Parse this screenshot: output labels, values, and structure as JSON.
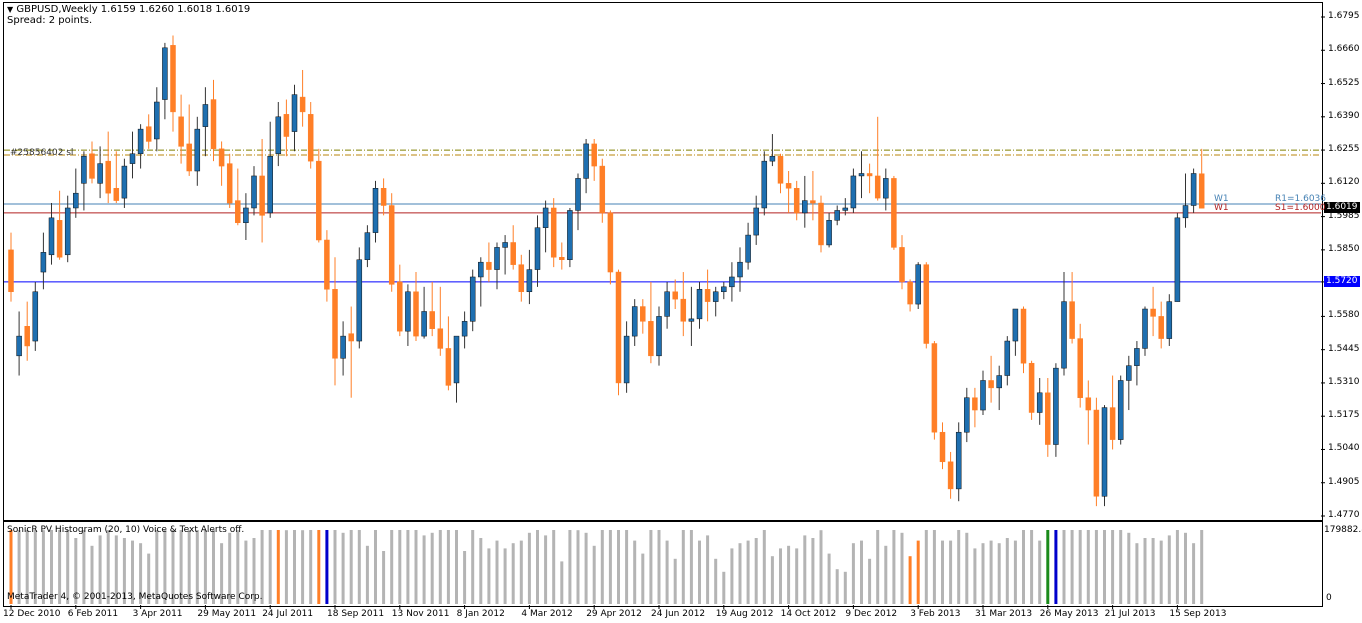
{
  "header": {
    "symbol_line": "GBPUSD,Weekly  1.6159 1.6260 1.6018 1.6019",
    "spread": "Spread: 2 points.",
    "object_label": "#25856402 sl"
  },
  "price_axis": {
    "ticks": [
      "1.6795",
      "1.6660",
      "1.6525",
      "1.6390",
      "1.6255",
      "1.6120",
      "1.5985",
      "1.5850",
      "1.5720",
      "1.5580",
      "1.5445",
      "1.5310",
      "1.5175",
      "1.5040",
      "1.4905",
      "1.4770"
    ],
    "current_price": "1.6019",
    "blue_line_price": "1.5720"
  },
  "pivots": {
    "w1_left_top": "W1",
    "w1_left_bottom": "W1",
    "r1": "R1=1.6036",
    "s1": "S1=1.6000"
  },
  "indicator": {
    "title": "SonicR PV Histogram  (20, 10)    Voice & Text Alerts off.",
    "axis_top": "179882.8",
    "axis_zero": "0",
    "copyright": "MetaTrader 4, © 2001-2013, MetaQuotes Software Corp."
  },
  "time_axis": [
    "12 Dec 2010",
    "6 Feb 2011",
    "3 Apr 2011",
    "29 May 2011",
    "24 Jul 2011",
    "18 Sep 2011",
    "13 Nov 2011",
    "8 Jan 2012",
    "4 Mar 2012",
    "29 Apr 2012",
    "24 Jun 2012",
    "19 Aug 2012",
    "14 Oct 2012",
    "9 Dec 2012",
    "3 Feb 2013",
    "31 Mar 2013",
    "26 May 2013",
    "21 Jul 2013",
    "15 Sep 2013"
  ],
  "colors": {
    "bull": "#1e6fb0",
    "bear": "#ff7f27",
    "hline_blue": "#0000ff",
    "pivot_r": "#4682b4",
    "pivot_s": "#b22222",
    "vol_gray": "#b4b4b4"
  },
  "chart_data": {
    "type": "candlestick",
    "title": "GBPUSD,Weekly",
    "ylim": [
      1.477,
      1.6795
    ],
    "candles": [
      [
        1.585,
        1.592,
        1.564,
        1.568
      ],
      [
        1.542,
        1.56,
        1.534,
        1.55
      ],
      [
        1.554,
        1.564,
        1.54,
        1.546
      ],
      [
        1.548,
        1.572,
        1.544,
        1.568
      ],
      [
        1.576,
        1.592,
        1.569,
        1.584
      ],
      [
        1.583,
        1.604,
        1.579,
        1.598
      ],
      [
        1.597,
        1.609,
        1.581,
        1.582
      ],
      [
        1.583,
        1.607,
        1.58,
        1.602
      ],
      [
        1.602,
        1.618,
        1.598,
        1.608
      ],
      [
        1.612,
        1.625,
        1.601,
        1.623
      ],
      [
        1.624,
        1.629,
        1.612,
        1.614
      ],
      [
        1.612,
        1.627,
        1.606,
        1.62
      ],
      [
        1.621,
        1.633,
        1.604,
        1.608
      ],
      [
        1.61,
        1.625,
        1.604,
        1.605
      ],
      [
        1.606,
        1.622,
        1.602,
        1.619
      ],
      [
        1.62,
        1.633,
        1.614,
        1.624
      ],
      [
        1.624,
        1.636,
        1.618,
        1.634
      ],
      [
        1.635,
        1.64,
        1.626,
        1.629
      ],
      [
        1.63,
        1.651,
        1.625,
        1.645
      ],
      [
        1.646,
        1.669,
        1.638,
        1.667
      ],
      [
        1.668,
        1.672,
        1.633,
        1.641
      ],
      [
        1.639,
        1.648,
        1.62,
        1.627
      ],
      [
        1.628,
        1.644,
        1.615,
        1.617
      ],
      [
        1.617,
        1.639,
        1.611,
        1.634
      ],
      [
        1.635,
        1.651,
        1.623,
        1.644
      ],
      [
        1.646,
        1.654,
        1.621,
        1.626
      ],
      [
        1.626,
        1.629,
        1.611,
        1.619
      ],
      [
        1.62,
        1.624,
        1.602,
        1.604
      ],
      [
        1.605,
        1.618,
        1.595,
        1.596
      ],
      [
        1.596,
        1.608,
        1.589,
        1.602
      ],
      [
        1.602,
        1.619,
        1.599,
        1.615
      ],
      [
        1.615,
        1.63,
        1.588,
        1.599
      ],
      [
        1.6,
        1.637,
        1.598,
        1.623
      ],
      [
        1.624,
        1.645,
        1.619,
        1.639
      ],
      [
        1.64,
        1.646,
        1.623,
        1.631
      ],
      [
        1.633,
        1.652,
        1.625,
        1.648
      ],
      [
        1.647,
        1.658,
        1.635,
        1.641
      ],
      [
        1.64,
        1.645,
        1.618,
        1.621
      ],
      [
        1.621,
        1.626,
        1.588,
        1.589
      ],
      [
        1.589,
        1.593,
        1.564,
        1.569
      ],
      [
        1.569,
        1.582,
        1.53,
        1.541
      ],
      [
        1.541,
        1.556,
        1.534,
        1.55
      ],
      [
        1.551,
        1.562,
        1.525,
        1.548
      ],
      [
        1.548,
        1.586,
        1.545,
        1.581
      ],
      [
        1.581,
        1.595,
        1.578,
        1.592
      ],
      [
        1.592,
        1.613,
        1.588,
        1.61
      ],
      [
        1.61,
        1.614,
        1.599,
        1.603
      ],
      [
        1.603,
        1.608,
        1.568,
        1.571
      ],
      [
        1.572,
        1.579,
        1.55,
        1.552
      ],
      [
        1.552,
        1.571,
        1.546,
        1.568
      ],
      [
        1.568,
        1.576,
        1.548,
        1.55
      ],
      [
        1.55,
        1.57,
        1.549,
        1.56
      ],
      [
        1.56,
        1.572,
        1.55,
        1.553
      ],
      [
        1.553,
        1.57,
        1.542,
        1.545
      ],
      [
        1.545,
        1.558,
        1.528,
        1.53
      ],
      [
        1.531,
        1.549,
        1.523,
        1.55
      ],
      [
        1.55,
        1.56,
        1.545,
        1.556
      ],
      [
        1.556,
        1.577,
        1.552,
        1.574
      ],
      [
        1.574,
        1.582,
        1.562,
        1.58
      ],
      [
        1.58,
        1.588,
        1.572,
        1.577
      ],
      [
        1.577,
        1.588,
        1.569,
        1.586
      ],
      [
        1.586,
        1.591,
        1.575,
        1.588
      ],
      [
        1.588,
        1.595,
        1.577,
        1.579
      ],
      [
        1.579,
        1.583,
        1.564,
        1.568
      ],
      [
        1.568,
        1.585,
        1.563,
        1.577
      ],
      [
        1.577,
        1.599,
        1.57,
        1.594
      ],
      [
        1.594,
        1.605,
        1.584,
        1.602
      ],
      [
        1.602,
        1.606,
        1.578,
        1.582
      ],
      [
        1.582,
        1.588,
        1.577,
        1.581
      ],
      [
        1.581,
        1.602,
        1.578,
        1.601
      ],
      [
        1.601,
        1.616,
        1.593,
        1.614
      ],
      [
        1.614,
        1.63,
        1.608,
        1.628
      ],
      [
        1.628,
        1.63,
        1.613,
        1.619
      ],
      [
        1.619,
        1.622,
        1.596,
        1.6
      ],
      [
        1.6,
        1.601,
        1.571,
        1.576
      ],
      [
        1.576,
        1.577,
        1.526,
        1.531
      ],
      [
        1.531,
        1.556,
        1.527,
        1.55
      ],
      [
        1.55,
        1.565,
        1.546,
        1.562
      ],
      [
        1.562,
        1.565,
        1.551,
        1.556
      ],
      [
        1.556,
        1.572,
        1.539,
        1.542
      ],
      [
        1.542,
        1.562,
        1.538,
        1.558
      ],
      [
        1.558,
        1.572,
        1.553,
        1.568
      ],
      [
        1.568,
        1.573,
        1.561,
        1.565
      ],
      [
        1.565,
        1.576,
        1.55,
        1.556
      ],
      [
        1.556,
        1.57,
        1.546,
        1.557
      ],
      [
        1.557,
        1.572,
        1.553,
        1.569
      ],
      [
        1.569,
        1.577,
        1.556,
        1.564
      ],
      [
        1.564,
        1.57,
        1.558,
        1.568
      ],
      [
        1.568,
        1.572,
        1.565,
        1.57
      ],
      [
        1.57,
        1.58,
        1.564,
        1.574
      ],
      [
        1.574,
        1.586,
        1.568,
        1.58
      ],
      [
        1.58,
        1.596,
        1.577,
        1.591
      ],
      [
        1.591,
        1.607,
        1.587,
        1.602
      ],
      [
        1.602,
        1.625,
        1.599,
        1.621
      ],
      [
        1.621,
        1.632,
        1.619,
        1.623
      ],
      [
        1.623,
        1.624,
        1.608,
        1.612
      ],
      [
        1.612,
        1.617,
        1.6,
        1.61
      ],
      [
        1.61,
        1.613,
        1.597,
        1.6
      ],
      [
        1.6,
        1.615,
        1.594,
        1.605
      ],
      [
        1.605,
        1.617,
        1.597,
        1.604
      ],
      [
        1.604,
        1.607,
        1.584,
        1.587
      ],
      [
        1.587,
        1.6,
        1.586,
        1.597
      ],
      [
        1.597,
        1.603,
        1.595,
        1.601
      ],
      [
        1.601,
        1.606,
        1.599,
        1.602
      ],
      [
        1.602,
        1.618,
        1.6,
        1.615
      ],
      [
        1.615,
        1.625,
        1.606,
        1.616
      ],
      [
        1.616,
        1.62,
        1.608,
        1.615
      ],
      [
        1.615,
        1.639,
        1.605,
        1.606
      ],
      [
        1.606,
        1.618,
        1.601,
        1.614
      ],
      [
        1.614,
        1.615,
        1.585,
        1.586
      ],
      [
        1.586,
        1.591,
        1.569,
        1.572
      ],
      [
        1.572,
        1.573,
        1.56,
        1.563
      ],
      [
        1.563,
        1.58,
        1.561,
        1.579
      ],
      [
        1.579,
        1.58,
        1.545,
        1.547
      ],
      [
        1.547,
        1.548,
        1.508,
        1.511
      ],
      [
        1.511,
        1.515,
        1.496,
        1.499
      ],
      [
        1.499,
        1.503,
        1.484,
        1.488
      ],
      [
        1.488,
        1.515,
        1.483,
        1.511
      ],
      [
        1.511,
        1.529,
        1.507,
        1.525
      ],
      [
        1.525,
        1.529,
        1.513,
        1.52
      ],
      [
        1.52,
        1.536,
        1.518,
        1.532
      ],
      [
        1.532,
        1.542,
        1.523,
        1.529
      ],
      [
        1.529,
        1.538,
        1.52,
        1.534
      ],
      [
        1.534,
        1.55,
        1.53,
        1.548
      ],
      [
        1.548,
        1.561,
        1.542,
        1.561
      ],
      [
        1.561,
        1.562,
        1.535,
        1.539
      ],
      [
        1.539,
        1.54,
        1.516,
        1.519
      ],
      [
        1.519,
        1.533,
        1.514,
        1.527
      ],
      [
        1.527,
        1.533,
        1.501,
        1.506
      ],
      [
        1.506,
        1.539,
        1.501,
        1.537
      ],
      [
        1.537,
        1.576,
        1.534,
        1.564
      ],
      [
        1.564,
        1.576,
        1.547,
        1.549
      ],
      [
        1.549,
        1.555,
        1.521,
        1.525
      ],
      [
        1.525,
        1.532,
        1.506,
        1.52
      ],
      [
        1.52,
        1.525,
        1.481,
        1.485
      ],
      [
        1.485,
        1.522,
        1.481,
        1.521
      ],
      [
        1.521,
        1.534,
        1.504,
        1.508
      ],
      [
        1.508,
        1.534,
        1.506,
        1.532
      ],
      [
        1.532,
        1.542,
        1.52,
        1.538
      ],
      [
        1.538,
        1.548,
        1.53,
        1.545
      ],
      [
        1.545,
        1.562,
        1.542,
        1.561
      ],
      [
        1.561,
        1.57,
        1.55,
        1.558
      ],
      [
        1.558,
        1.564,
        1.545,
        1.549
      ],
      [
        1.549,
        1.567,
        1.546,
        1.564
      ],
      [
        1.564,
        1.6,
        1.564,
        1.598
      ],
      [
        1.598,
        1.616,
        1.594,
        1.603
      ],
      [
        1.603,
        1.618,
        1.6,
        1.616
      ],
      [
        1.6159,
        1.626,
        1.6018,
        1.6019
      ]
    ],
    "volume_highlights": {
      "orange": [
        0,
        33,
        38,
        111,
        112
      ],
      "blue": [
        39
      ],
      "green": [
        128
      ],
      "dark_blue": [
        129
      ]
    },
    "hlines": [
      {
        "price": 1.572,
        "color": "#0000ff",
        "label": "1.5720"
      },
      {
        "price": 1.6036,
        "color": "#4682b4",
        "label": "R1=1.6036"
      },
      {
        "price": 1.6,
        "color": "#b22222",
        "label": "S1=1.6000"
      },
      {
        "price": 1.6255,
        "color": "#808000",
        "style": "dashdot"
      },
      {
        "price": 1.6235,
        "color": "#b8860b",
        "style": "dashdot"
      }
    ]
  }
}
